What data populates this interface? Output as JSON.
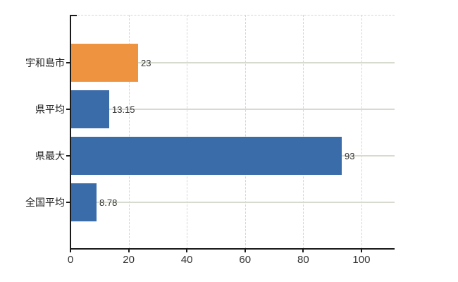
{
  "chart_data": {
    "type": "bar",
    "orientation": "horizontal",
    "title": "",
    "xlabel": "",
    "ylabel": "",
    "categories": [
      "宇和島市",
      "県平均",
      "県最大",
      "全国平均"
    ],
    "values": [
      23,
      13.15,
      93,
      8.78
    ],
    "value_labels": [
      "23",
      "13.15",
      "93",
      "8.78"
    ],
    "bar_colors": [
      "#EE9340",
      "#3B6CAA",
      "#3B6CAA",
      "#3B6CAA"
    ],
    "x_ticks": [
      0,
      20,
      40,
      60,
      80,
      100
    ],
    "x_tick_labels": [
      "0",
      "20",
      "40",
      "60",
      "80",
      "100"
    ],
    "xlim": [
      0,
      111.4
    ],
    "grid": true,
    "grid_vertical_style": "dashed",
    "grid_horizontal_style": "solid",
    "legend": null
  },
  "colors": {
    "background": "#ffffff",
    "bar_highlight": "#EE9340",
    "bar_default": "#3B6CAA",
    "axis": "#1a1a1a",
    "grid_solid": "#d7dacf",
    "grid_dashed": "#d6d3d9",
    "text": "#333333"
  }
}
